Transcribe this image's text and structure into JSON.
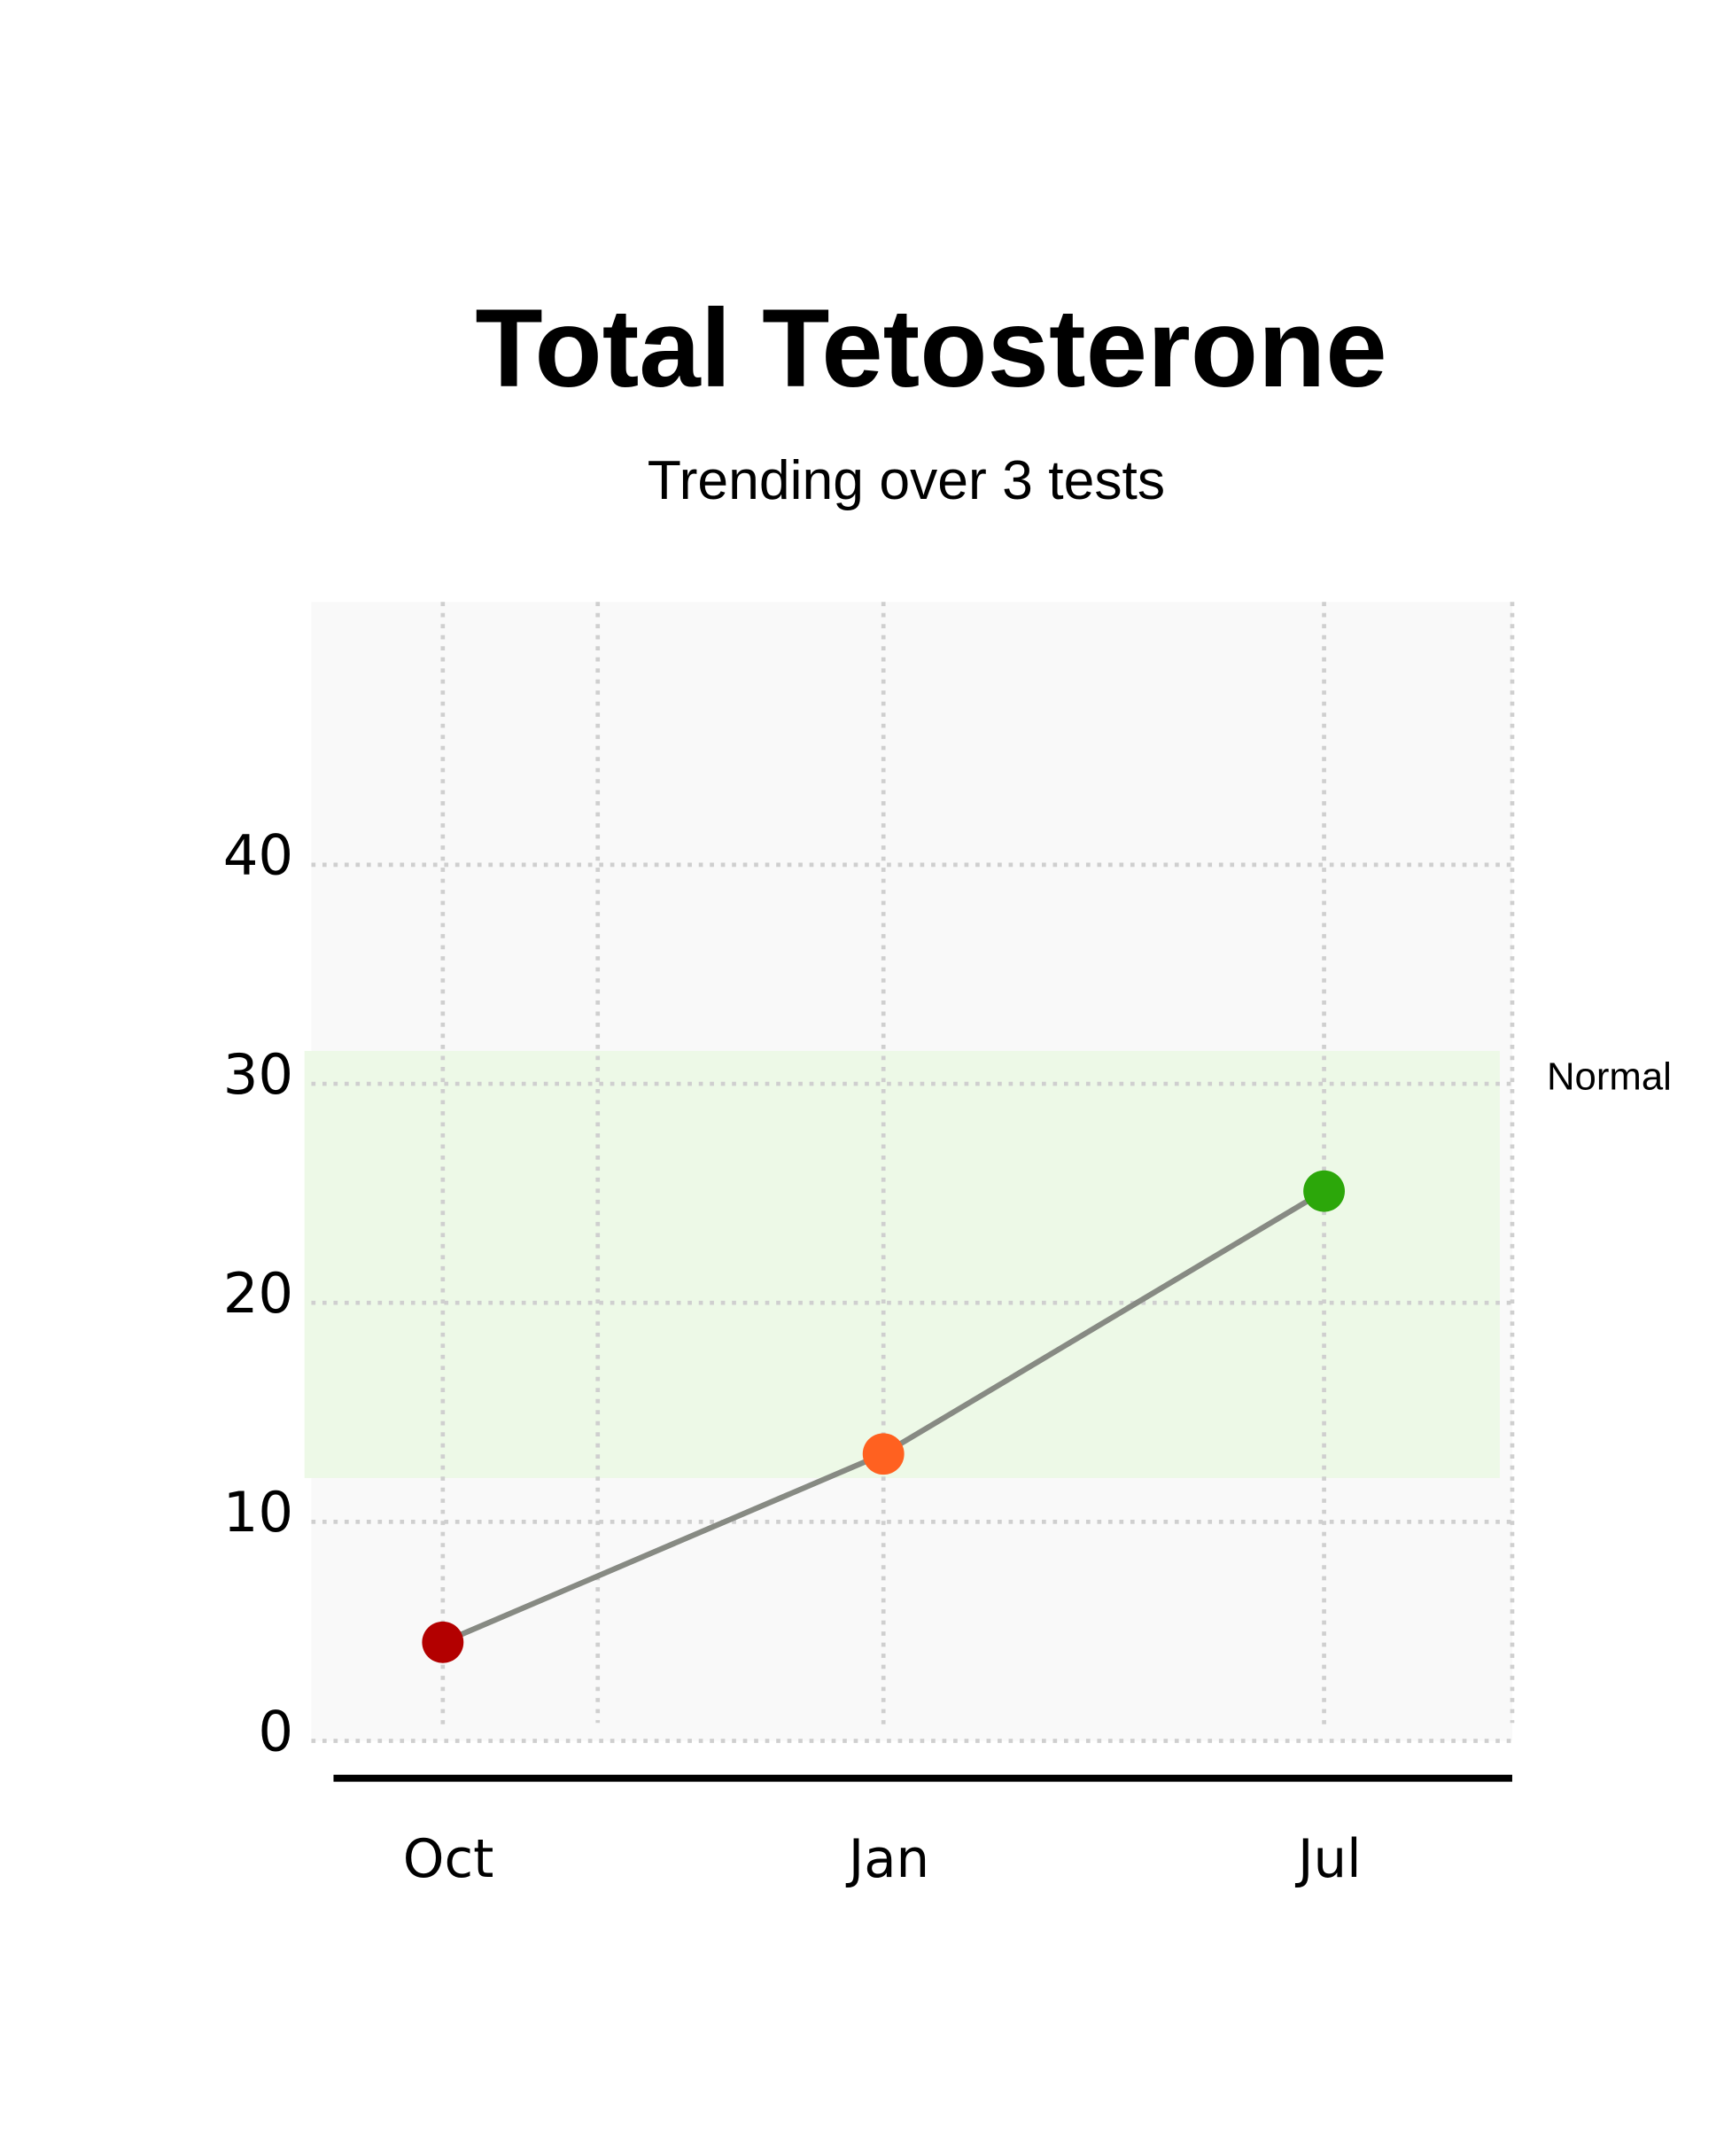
{
  "chart_data": {
    "type": "line",
    "title": "Total Tetosterone",
    "subtitle": "Trending over 3 tests",
    "categories": [
      "Oct",
      "Jan",
      "Jul"
    ],
    "series": [
      {
        "values": [
          4.5,
          13.1,
          25.1
        ],
        "color": "#878a83",
        "point_colors": [
          "#b30000",
          "#ff6120",
          "#2ca70a"
        ]
      }
    ],
    "ylim": [
      0,
      52
    ],
    "yticks": [
      0,
      10,
      20,
      30,
      40
    ],
    "grid": true,
    "normal_range": [
      12,
      31.5
    ],
    "normal_label": "Normal",
    "normal_color": "#edf9e7"
  }
}
